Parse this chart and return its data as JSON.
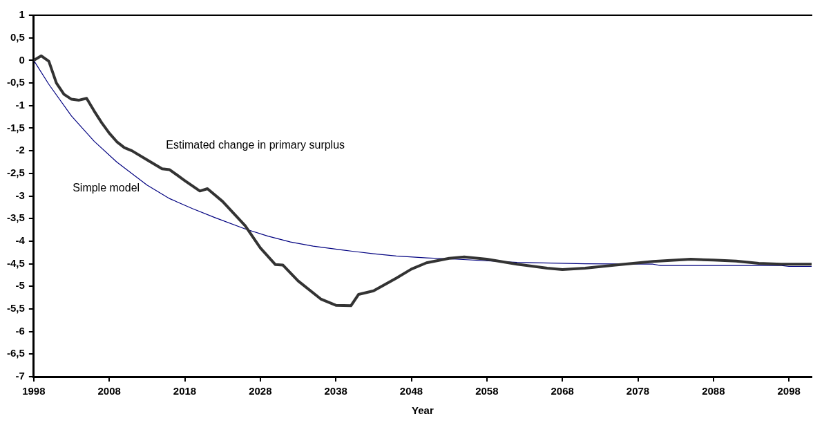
{
  "chart_data": {
    "type": "line",
    "xlabel": "Year",
    "xlim": [
      1998,
      2101
    ],
    "xticks": [
      1998,
      2008,
      2018,
      2028,
      2038,
      2048,
      2058,
      2068,
      2078,
      2088,
      2098
    ],
    "ylim": [
      -7,
      1
    ],
    "yticks": [
      1,
      {
        "value": 0.5,
        "label": "0,5"
      },
      0,
      {
        "value": -0.5,
        "label": "-0,5"
      },
      -1,
      {
        "value": -1.5,
        "label": "-1,5"
      },
      -2,
      {
        "value": -2.5,
        "label": "-2,5"
      },
      -3,
      {
        "value": -3.5,
        "label": "-3,5"
      },
      -4,
      {
        "value": -4.5,
        "label": "-4,5"
      },
      -5,
      {
        "value": -5.5,
        "label": "-5,5"
      },
      -6,
      {
        "value": -6.5,
        "label": "-6,5"
      },
      -7
    ],
    "grid": false,
    "legend": false,
    "marker": "none",
    "line_style": "solid",
    "series": [
      {
        "name": "Estimated change in primary surplus",
        "color": "#333333",
        "x": [
          1998,
          1999,
          2000,
          2001,
          2002,
          2003,
          2004,
          2005,
          2006,
          2007,
          2008,
          2009,
          2010,
          2011,
          2013,
          2015,
          2016,
          2018,
          2020,
          2021,
          2023,
          2026,
          2028,
          2030,
          2031,
          2033,
          2036,
          2038,
          2040,
          2041,
          2043,
          2046,
          2048,
          2050,
          2053,
          2055,
          2058,
          2062,
          2066,
          2068,
          2071,
          2075,
          2080,
          2085,
          2088,
          2091,
          2094,
          2097,
          2101
        ],
        "values": [
          0,
          0.1,
          -0.02,
          -0.5,
          -0.75,
          -0.86,
          -0.88,
          -0.84,
          -1.12,
          -1.38,
          -1.61,
          -1.8,
          -1.93,
          -2.0,
          -2.2,
          -2.4,
          -2.42,
          -2.66,
          -2.89,
          -2.84,
          -3.12,
          -3.66,
          -4.15,
          -4.52,
          -4.53,
          -4.88,
          -5.28,
          -5.42,
          -5.43,
          -5.18,
          -5.1,
          -4.82,
          -4.62,
          -4.48,
          -4.38,
          -4.35,
          -4.4,
          -4.51,
          -4.6,
          -4.63,
          -4.6,
          -4.53,
          -4.45,
          -4.4,
          -4.42,
          -4.44,
          -4.49,
          -4.51,
          -4.51
        ]
      },
      {
        "name": "Simple model",
        "color": "#000080",
        "x": [
          1998,
          2000,
          2003,
          2006,
          2009,
          2013,
          2016,
          2019,
          2022,
          2026,
          2029,
          2032,
          2035,
          2039,
          2043,
          2046,
          2050,
          2054,
          2062,
          2071,
          2080,
          2081,
          2097,
          2098,
          2101
        ],
        "values": [
          0,
          -0.53,
          -1.23,
          -1.79,
          -2.25,
          -2.76,
          -3.06,
          -3.28,
          -3.48,
          -3.73,
          -3.89,
          -4.02,
          -4.11,
          -4.2,
          -4.28,
          -4.33,
          -4.37,
          -4.4,
          -4.47,
          -4.5,
          -4.51,
          -4.54,
          -4.54,
          -4.56,
          -4.56
        ]
      }
    ]
  }
}
